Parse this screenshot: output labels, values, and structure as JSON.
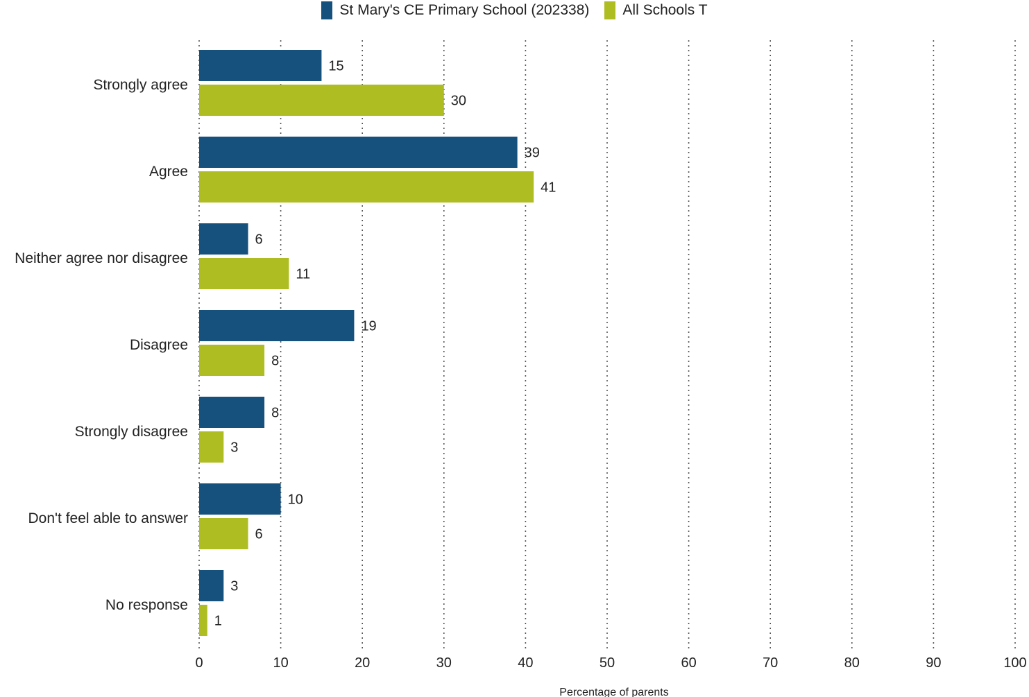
{
  "chart_data": {
    "type": "bar",
    "orientation": "horizontal",
    "categories": [
      "Strongly agree",
      "Agree",
      "Neither agree nor disagree",
      "Disagree",
      "Strongly disagree",
      "Don't feel able to answer",
      "No response"
    ],
    "series": [
      {
        "name": "St Mary's CE Primary School (202338)",
        "color": "#16507d",
        "values": [
          15,
          39,
          6,
          19,
          8,
          10,
          3
        ]
      },
      {
        "name": "All Schools T",
        "color": "#aebd22",
        "values": [
          30,
          41,
          11,
          8,
          3,
          6,
          1
        ]
      }
    ],
    "xlabel": "Percentage of parents",
    "ylabel": "",
    "xlim": [
      0,
      100
    ],
    "xticks": [
      0,
      10,
      20,
      30,
      40,
      50,
      60,
      70,
      80,
      90,
      100
    ],
    "grid": "vertical dotted",
    "legend": "top-center",
    "data_labels": true
  }
}
